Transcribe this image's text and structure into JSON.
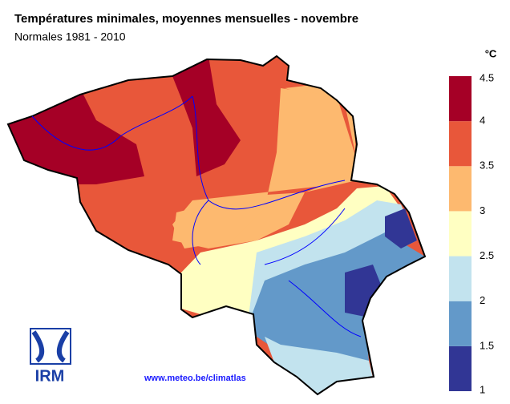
{
  "header": {
    "title": "Températures minimales, moyennes mensuelles - novembre",
    "subtitle": "Normales 1981 - 2010"
  },
  "legend": {
    "unit": "°C",
    "ticks": [
      1,
      1.5,
      2,
      2.5,
      3,
      3.5,
      4,
      4.5
    ],
    "colors": [
      "#313695",
      "#6399c9",
      "#c2e3ee",
      "#ffffc2",
      "#fdb96f",
      "#e8573a",
      "#a50026"
    ]
  },
  "footer": {
    "url": "www.meteo.be/climatlas",
    "logo": "IRM"
  }
}
